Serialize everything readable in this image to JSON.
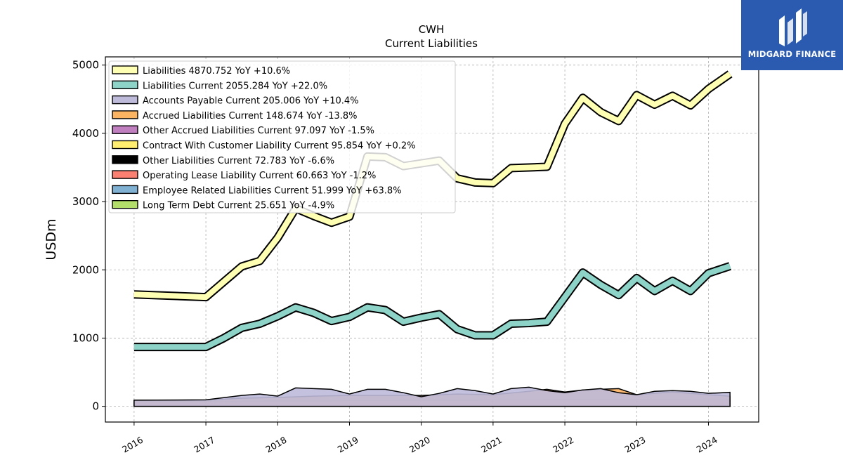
{
  "brand": {
    "name": "MIDGARD FINANCE",
    "color": "#2a5bb0"
  },
  "chart_data": {
    "type": "line",
    "title": "CWH",
    "subtitle": "Current  Liabilities",
    "xlabel": "",
    "ylabel": "USDm",
    "xlim": [
      2015.6,
      2024.7
    ],
    "ylim": [
      -230,
      5120
    ],
    "yticks": [
      0,
      1000,
      2000,
      3000,
      4000,
      5000
    ],
    "xticks": [
      "2016",
      "2017",
      "2018",
      "2019",
      "2020",
      "2021",
      "2022",
      "2023",
      "2024"
    ],
    "grid": true,
    "legend_position": "upper-left",
    "series": [
      {
        "name": "Liabilities  4870.752 YoY +10.6%",
        "color": "#ffffb3",
        "x": [
          2016.0,
          2017.0,
          2017.5,
          2017.75,
          2018.0,
          2018.25,
          2018.5,
          2018.75,
          2019.0,
          2019.25,
          2019.5,
          2019.75,
          2020.0,
          2020.25,
          2020.5,
          2020.75,
          2021.0,
          2021.25,
          2021.5,
          2021.75,
          2022.0,
          2022.25,
          2022.5,
          2022.75,
          2023.0,
          2023.25,
          2023.5,
          2023.75,
          2024.0,
          2024.3
        ],
        "values": [
          1640,
          1600,
          2050,
          2130,
          2470,
          2900,
          2790,
          2690,
          2780,
          3660,
          3650,
          3520,
          3560,
          3600,
          3340,
          3280,
          3270,
          3490,
          3500,
          3510,
          4140,
          4520,
          4310,
          4180,
          4560,
          4420,
          4550,
          4410,
          4650,
          4870
        ]
      },
      {
        "name": "Liabilities Current  2055.284 YoY +22.0%",
        "color": "#8dd3c7",
        "x": [
          2016.0,
          2017.0,
          2017.25,
          2017.5,
          2017.75,
          2018.0,
          2018.25,
          2018.5,
          2018.75,
          2019.0,
          2019.25,
          2019.5,
          2019.75,
          2020.0,
          2020.25,
          2020.5,
          2020.75,
          2021.0,
          2021.25,
          2021.5,
          2021.75,
          2022.0,
          2022.25,
          2022.5,
          2022.75,
          2023.0,
          2023.25,
          2023.5,
          2023.75,
          2024.0,
          2024.3
        ],
        "values": [
          870,
          870,
          1000,
          1150,
          1210,
          1320,
          1450,
          1370,
          1250,
          1310,
          1450,
          1410,
          1240,
          1300,
          1350,
          1130,
          1040,
          1040,
          1210,
          1220,
          1240,
          1600,
          1960,
          1780,
          1630,
          1880,
          1690,
          1840,
          1690,
          1950,
          2055
        ]
      },
      {
        "name": "Accounts Payable Current  205.006 YoY +10.4%",
        "color": "#bebada",
        "x": [
          2016.0,
          2017.0,
          2017.5,
          2017.75,
          2018.0,
          2018.25,
          2018.5,
          2018.75,
          2019.0,
          2019.25,
          2019.5,
          2019.75,
          2020.0,
          2020.25,
          2020.5,
          2020.75,
          2021.0,
          2021.25,
          2021.5,
          2021.75,
          2022.0,
          2022.25,
          2022.5,
          2022.75,
          2023.0,
          2023.25,
          2023.5,
          2023.75,
          2024.0,
          2024.3
        ],
        "values": [
          90,
          95,
          160,
          180,
          150,
          270,
          260,
          250,
          180,
          250,
          250,
          200,
          140,
          190,
          260,
          230,
          180,
          260,
          280,
          230,
          200,
          240,
          260,
          200,
          170,
          220,
          230,
          220,
          190,
          205
        ]
      },
      {
        "name": "Accrued Liabilities Current  148.674 YoY -13.8%",
        "color": "#fdb462",
        "x": [
          2016.0,
          2017.0,
          2017.5,
          2018.0,
          2018.5,
          2019.0,
          2019.5,
          2020.0,
          2020.5,
          2021.0,
          2021.5,
          2021.75,
          2022.0,
          2022.25,
          2022.5,
          2022.75,
          2023.0,
          2023.25,
          2023.5,
          2023.75,
          2024.0,
          2024.3
        ],
        "values": [
          90,
          90,
          120,
          130,
          150,
          160,
          160,
          160,
          180,
          170,
          220,
          250,
          210,
          240,
          250,
          260,
          170,
          190,
          210,
          190,
          170,
          149
        ]
      },
      {
        "name": "Other Accrued Liabilities Current  97.097 YoY -1.5%",
        "color": "#c07fbf",
        "x": [
          2016.0,
          2017.0,
          2018.0,
          2019.0,
          2020.0,
          2021.0,
          2022.0,
          2023.0,
          2024.0,
          2024.3
        ],
        "values": [
          70,
          70,
          80,
          85,
          90,
          95,
          100,
          100,
          98,
          97
        ]
      },
      {
        "name": "Contract With Customer Liability Current  95.854 YoY +0.2%",
        "color": "#ffed6f",
        "x": [
          2016.0,
          2017.0,
          2018.0,
          2019.0,
          2020.0,
          2021.0,
          2022.0,
          2023.0,
          2024.0,
          2024.3
        ],
        "values": [
          60,
          65,
          75,
          80,
          85,
          90,
          95,
          96,
          96,
          96
        ]
      },
      {
        "name": "Other Liabilities Current  72.783 YoY -6.6%",
        "color": "#000000",
        "x": [
          2016.0,
          2017.0,
          2018.0,
          2019.0,
          2020.0,
          2021.0,
          2022.0,
          2023.0,
          2024.0,
          2024.3
        ],
        "values": [
          50,
          55,
          60,
          65,
          70,
          72,
          78,
          76,
          74,
          73
        ]
      },
      {
        "name": "Operating Lease Liability Current  60.663 YoY -1.2%",
        "color": "#fb8072",
        "x": [
          2019.0,
          2020.0,
          2021.0,
          2022.0,
          2023.0,
          2024.0,
          2024.3
        ],
        "values": [
          50,
          55,
          58,
          60,
          61,
          61,
          61
        ]
      },
      {
        "name": "Employee Related Liabilities Current  51.999 YoY +63.8%",
        "color": "#80b1d3",
        "x": [
          2016.0,
          2017.0,
          2018.0,
          2019.0,
          2020.0,
          2021.0,
          2022.0,
          2023.0,
          2024.0,
          2024.3
        ],
        "values": [
          20,
          25,
          30,
          35,
          35,
          40,
          45,
          35,
          40,
          52
        ]
      },
      {
        "name": "Long Term Debt Current  25.651 YoY -4.9%",
        "color": "#b3de69",
        "x": [
          2021.0,
          2022.0,
          2023.0,
          2024.0,
          2024.3
        ],
        "values": [
          20,
          22,
          25,
          27,
          26
        ]
      }
    ]
  }
}
